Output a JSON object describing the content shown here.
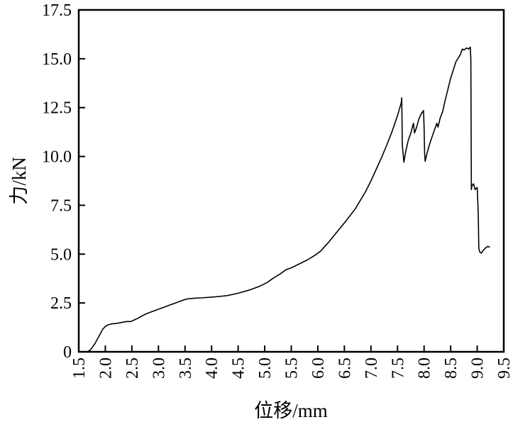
{
  "chart_data": {
    "type": "line",
    "xlabel": "位移/mm",
    "ylabel": "力/kN",
    "xlim": [
      1.5,
      9.5
    ],
    "ylim": [
      0,
      17.5
    ],
    "xticks": [
      "1.5",
      "2.0",
      "2.5",
      "3.0",
      "3.5",
      "4.0",
      "4.5",
      "5.0",
      "5.5",
      "6.0",
      "6.5",
      "7.0",
      "7.5",
      "8.0",
      "8.5",
      "9.0",
      "9.5"
    ],
    "yticks": [
      "0",
      "2.5",
      "5.0",
      "7.5",
      "10.0",
      "12.5",
      "15.0",
      "17.5"
    ],
    "grid": false,
    "line_color": "#000000",
    "series": [
      {
        "x": [
          1.66,
          1.72,
          1.8,
          1.88,
          1.95,
          2.0,
          2.05,
          2.12,
          2.2,
          2.3,
          2.4,
          2.48,
          2.52,
          2.6,
          2.7,
          2.8,
          2.9,
          3.0,
          3.1,
          3.2,
          3.3,
          3.4,
          3.5,
          3.58,
          3.7,
          3.8,
          4.0,
          4.2,
          4.3,
          4.5,
          4.7,
          4.9,
          5.05,
          5.15,
          5.3,
          5.4,
          5.5,
          5.65,
          5.8,
          5.95,
          6.05,
          6.2,
          6.35,
          6.5,
          6.6,
          6.7,
          6.8,
          6.9,
          7.0,
          7.1,
          7.2,
          7.3,
          7.4,
          7.5,
          7.57,
          7.58,
          7.59,
          7.62,
          7.65,
          7.7,
          7.75,
          7.78,
          7.8,
          7.82,
          7.86,
          7.9,
          7.95,
          7.99,
          8.0,
          8.01,
          8.02,
          8.05,
          8.1,
          8.15,
          8.2,
          8.24,
          8.26,
          8.28,
          8.3,
          8.35,
          8.4,
          8.5,
          8.6,
          8.68,
          8.72,
          8.75,
          8.8,
          8.84,
          8.87,
          8.88,
          8.89,
          8.9,
          8.93,
          8.96,
          8.99,
          9.0,
          9.02,
          9.03,
          9.05,
          9.08,
          9.1,
          9.15,
          9.2,
          9.24
        ],
        "y": [
          0.0,
          0.1,
          0.4,
          0.8,
          1.15,
          1.3,
          1.38,
          1.43,
          1.45,
          1.5,
          1.55,
          1.55,
          1.6,
          1.7,
          1.85,
          1.98,
          2.08,
          2.18,
          2.28,
          2.38,
          2.48,
          2.58,
          2.68,
          2.72,
          2.75,
          2.76,
          2.8,
          2.85,
          2.88,
          3.0,
          3.15,
          3.35,
          3.55,
          3.75,
          4.0,
          4.2,
          4.3,
          4.5,
          4.7,
          4.95,
          5.15,
          5.6,
          6.1,
          6.6,
          6.95,
          7.3,
          7.75,
          8.2,
          8.75,
          9.35,
          9.95,
          10.6,
          11.3,
          12.1,
          12.75,
          13.0,
          10.6,
          9.7,
          10.2,
          10.8,
          11.2,
          11.5,
          11.7,
          11.2,
          11.5,
          11.9,
          12.2,
          12.35,
          11.5,
          10.2,
          9.75,
          10.1,
          10.6,
          11.0,
          11.4,
          11.7,
          11.5,
          11.7,
          11.95,
          12.3,
          12.9,
          14.0,
          14.85,
          15.2,
          15.5,
          15.45,
          15.55,
          15.5,
          15.6,
          15.0,
          8.3,
          8.5,
          8.6,
          8.3,
          8.4,
          8.4,
          7.0,
          5.3,
          5.1,
          5.05,
          5.15,
          5.3,
          5.4,
          5.35
        ]
      }
    ]
  }
}
